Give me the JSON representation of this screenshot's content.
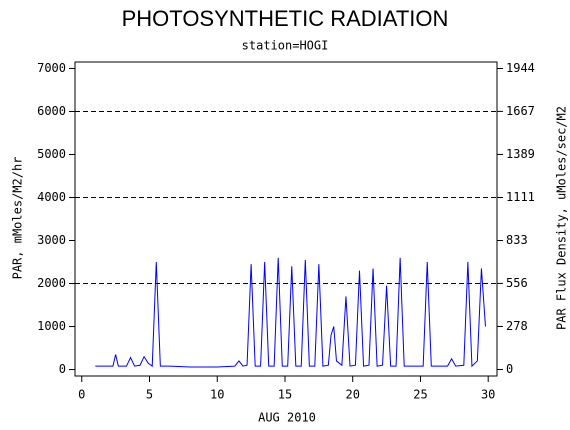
{
  "chart_data": {
    "type": "line",
    "title": "PHOTOSYNTHETIC RADIATION",
    "subtitle": "station=HOGI",
    "xlabel": "AUG 2010",
    "ylabel": "PAR, mMoles/M2/hr",
    "y2label": "PAR Flux Density, uMoles/sec/M2",
    "x": [
      1,
      2.3,
      2.5,
      2.7,
      3.3,
      3.6,
      3.9,
      4.3,
      4.6,
      4.9,
      5.2,
      5.5,
      5.8,
      6.5,
      8,
      10,
      11.3,
      11.6,
      11.9,
      12.2,
      12.5,
      12.8,
      13.2,
      13.5,
      13.8,
      14.2,
      14.5,
      14.8,
      15.2,
      15.5,
      15.8,
      16.2,
      16.5,
      16.8,
      17.2,
      17.5,
      17.8,
      18.2,
      18.4,
      18.6,
      18.8,
      19.2,
      19.5,
      19.8,
      20.2,
      20.5,
      20.8,
      21.2,
      21.5,
      21.8,
      22.2,
      22.5,
      22.8,
      23.2,
      23.5,
      23.8,
      25.2,
      25.5,
      25.8,
      27,
      27.3,
      27.6,
      28.2,
      28.5,
      28.8,
      29.2,
      29.5,
      29.8
    ],
    "series": [
      {
        "color": "#0000ff",
        "values": [
          80,
          80,
          350,
          80,
          80,
          280,
          80,
          100,
          300,
          150,
          80,
          2500,
          80,
          80,
          60,
          60,
          80,
          200,
          80,
          100,
          2450,
          80,
          80,
          2500,
          80,
          80,
          2600,
          80,
          80,
          2400,
          80,
          80,
          2550,
          80,
          80,
          2450,
          80,
          100,
          800,
          1000,
          200,
          100,
          1700,
          80,
          100,
          2300,
          80,
          100,
          2350,
          80,
          100,
          1950,
          80,
          80,
          2600,
          80,
          80,
          2500,
          80,
          80,
          250,
          80,
          100,
          2500,
          80,
          200,
          2350,
          1000
        ]
      }
    ],
    "xlim": [
      -0.5,
      30.65
    ],
    "xticks": [
      0,
      5,
      10,
      15,
      20,
      25,
      30
    ],
    "ylim": [
      -150,
      7150
    ],
    "yticks": [
      0,
      1000,
      2000,
      3000,
      4000,
      5000,
      6000,
      7000
    ],
    "y2lim": [
      -42,
      1986
    ],
    "y2ticks": [
      0,
      278,
      556,
      833,
      1111,
      1389,
      1667,
      1944
    ],
    "gridlines": [
      2000,
      4000,
      6000
    ]
  }
}
